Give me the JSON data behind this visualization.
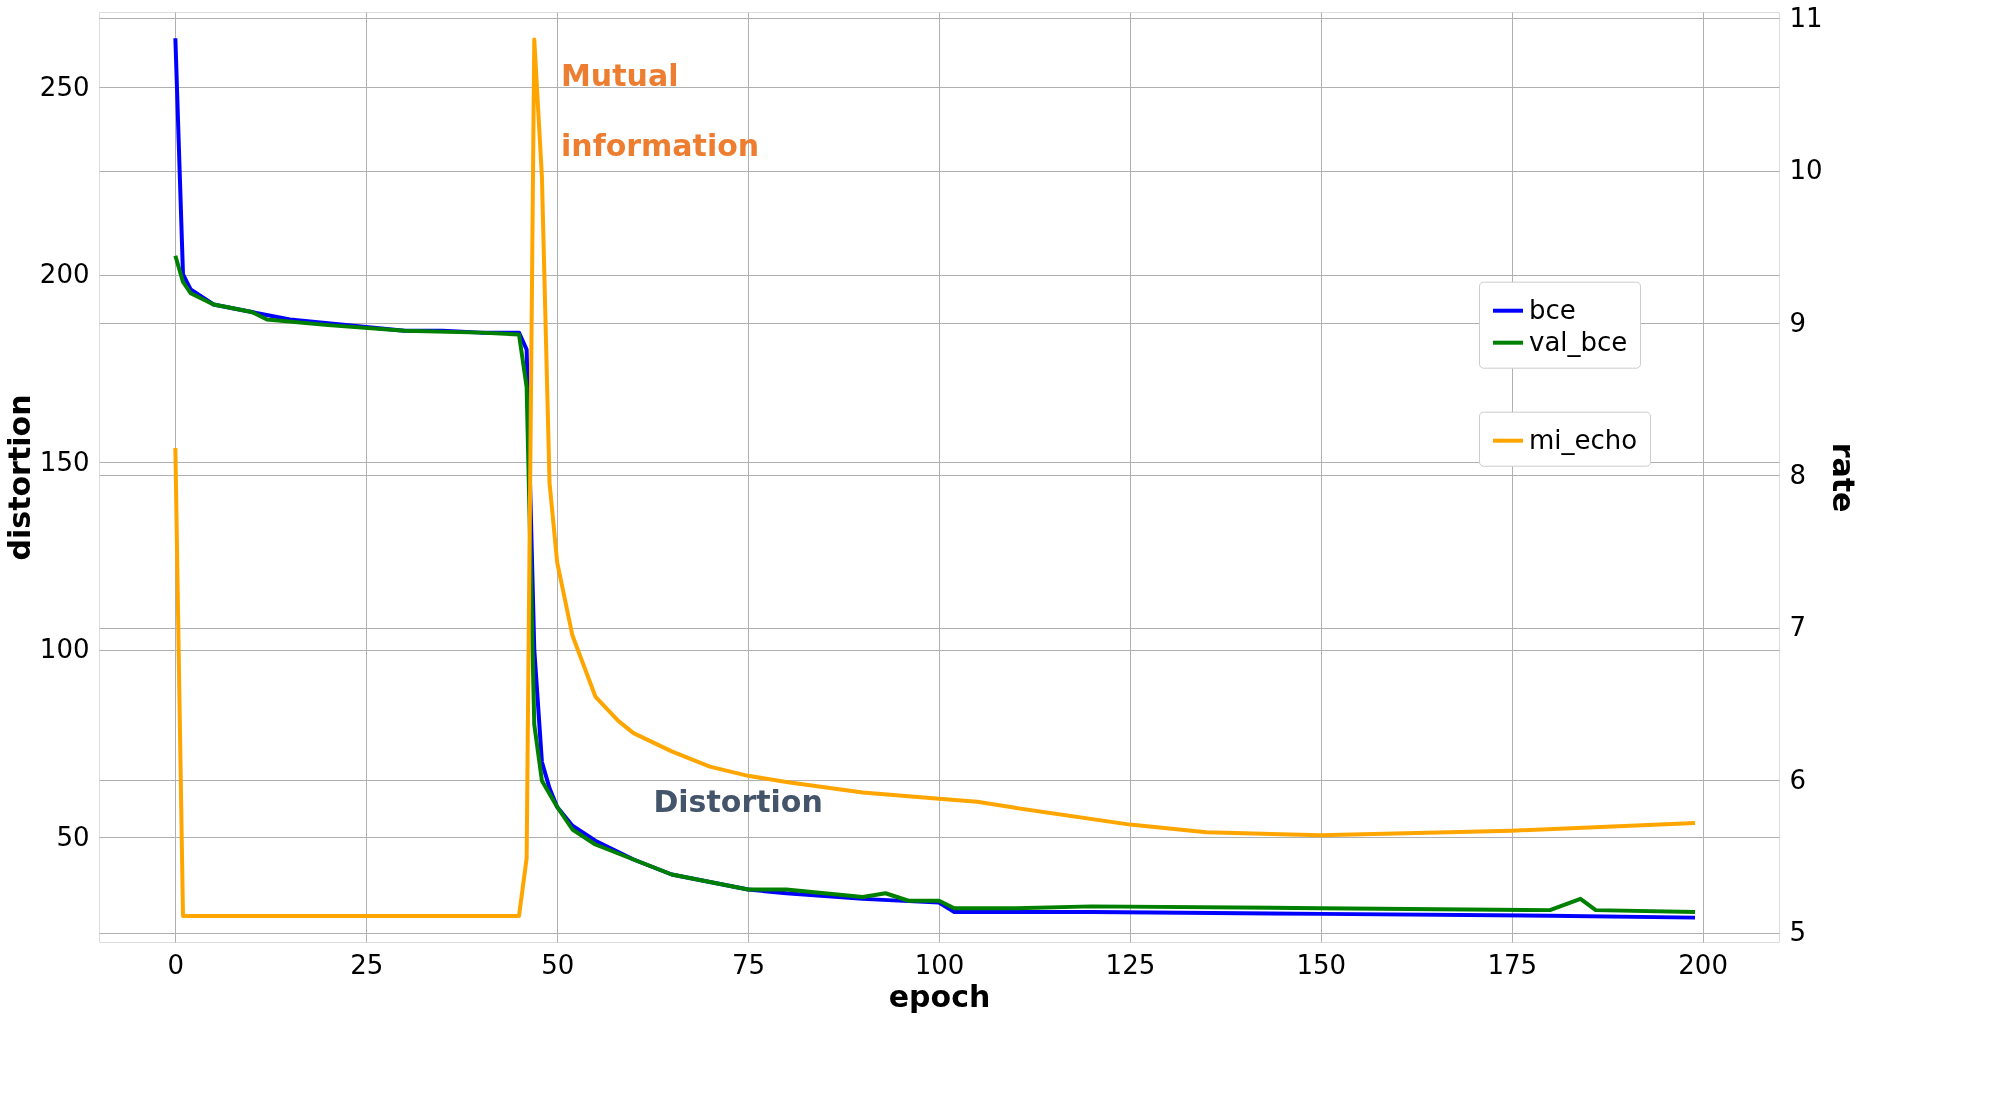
{
  "chart_data": {
    "type": "line",
    "xlabel": "epoch",
    "ylabel": "distortion",
    "y2label": "rate",
    "xlim": [
      -10,
      210
    ],
    "xticks": [
      0,
      25,
      50,
      75,
      100,
      125,
      150,
      175,
      200
    ],
    "ylim": [
      22,
      270
    ],
    "yticks": [
      50,
      100,
      150,
      200,
      250
    ],
    "y2lim": [
      4.94,
      11.04
    ],
    "y2ticks": [
      5,
      6,
      7,
      8,
      9,
      10,
      11
    ],
    "grid": true,
    "legend": "right",
    "line_style": "solid",
    "marker": "none",
    "annotations": [
      "Mutual information",
      "Distortion"
    ],
    "series": [
      {
        "name": "bce",
        "color": "#0000ff",
        "x": [
          0,
          1,
          2,
          5,
          10,
          15,
          20,
          25,
          30,
          35,
          40,
          45,
          46,
          47,
          48,
          49,
          50,
          52,
          55,
          60,
          65,
          70,
          75,
          80,
          90,
          100,
          102,
          120,
          150,
          180,
          199
        ],
        "values": [
          263,
          200,
          196,
          192,
          190,
          188,
          187,
          186,
          185,
          185,
          184.5,
          184.5,
          180,
          100,
          70,
          63,
          58,
          53,
          49,
          44,
          40,
          38,
          36,
          35,
          33.5,
          32.5,
          30,
          30,
          29.5,
          29,
          28.5
        ]
      },
      {
        "name": "val_bce",
        "color": "#008000",
        "x": [
          0,
          1,
          2,
          5,
          10,
          12,
          20,
          30,
          40,
          45,
          46,
          47,
          48,
          50,
          52,
          55,
          60,
          65,
          70,
          75,
          80,
          85,
          90,
          93,
          96,
          100,
          102,
          110,
          120,
          150,
          180,
          184,
          186,
          199
        ],
        "values": [
          205,
          198,
          195,
          192,
          190,
          188,
          186.5,
          185,
          184.5,
          184,
          170,
          80,
          65,
          58,
          52,
          48,
          44,
          40,
          38,
          36,
          36,
          35,
          34,
          35,
          33,
          33,
          31,
          31,
          31.5,
          31,
          30.5,
          33.5,
          30.5,
          30
        ]
      },
      {
        "name": "mi_echo",
        "color": "#ffa500",
        "axis": "y2",
        "x": [
          0,
          1,
          10,
          20,
          30,
          40,
          45,
          46,
          47,
          48,
          49,
          50,
          52,
          55,
          58,
          60,
          65,
          70,
          75,
          80,
          90,
          100,
          105,
          110,
          125,
          135,
          150,
          175,
          199
        ],
        "values": [
          8.18,
          5.11,
          5.11,
          5.11,
          5.11,
          5.11,
          5.11,
          5.49,
          10.86,
          9.96,
          7.95,
          7.43,
          6.95,
          6.55,
          6.39,
          6.31,
          6.19,
          6.09,
          6.03,
          5.99,
          5.92,
          5.88,
          5.86,
          5.82,
          5.71,
          5.66,
          5.64,
          5.67,
          5.72
        ]
      }
    ]
  }
}
